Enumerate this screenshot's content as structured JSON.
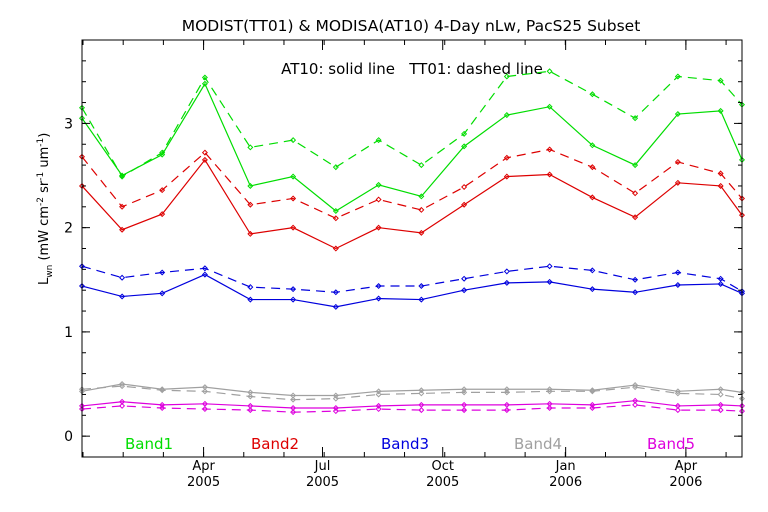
{
  "chart_data": {
    "type": "line",
    "title": "MODIST(TT01) & MODISA(AT10) 4-Day nLw, PacS25 Subset",
    "annotation": "AT10: solid line   TT01: dashed line",
    "ylabel": {
      "main": "L",
      "sub": "wn",
      "rest": " (mW cm",
      "sup1": "-2",
      "mid1": " sr",
      "sup2": "-1",
      "mid2": " um",
      "sup3": "-1",
      "end": ")"
    },
    "ylim": [
      -0.2,
      3.8
    ],
    "yticks": [
      0,
      1,
      2,
      3
    ],
    "xlim": [
      0,
      24.7
    ],
    "x": [
      0,
      1.5,
      3,
      4.6,
      6.3,
      7.9,
      9.5,
      11.1,
      12.7,
      14.3,
      15.9,
      17.5,
      19.1,
      20.7,
      22.3,
      23.9,
      24.7
    ],
    "xticks": [
      {
        "pos": 4.55,
        "month": "Apr",
        "year": "2005"
      },
      {
        "pos": 9.0,
        "month": "Jul",
        "year": "2005"
      },
      {
        "pos": 13.5,
        "month": "Oct",
        "year": "2005"
      },
      {
        "pos": 18.1,
        "month": "Jan",
        "year": "2006"
      },
      {
        "pos": 22.6,
        "month": "Apr",
        "year": "2006"
      }
    ],
    "series": [
      {
        "name": "Band1",
        "color": "#00dd00",
        "style": "solid",
        "values": [
          3.05,
          2.5,
          2.7,
          3.38,
          2.4,
          2.49,
          2.16,
          2.41,
          2.3,
          2.78,
          3.08,
          3.16,
          2.79,
          2.6,
          3.09,
          3.12,
          2.65
        ]
      },
      {
        "name": "Band1",
        "color": "#00dd00",
        "style": "dashed",
        "values": [
          3.15,
          2.49,
          2.72,
          3.44,
          2.77,
          2.84,
          2.58,
          2.84,
          2.6,
          2.9,
          3.45,
          3.5,
          3.28,
          3.05,
          3.45,
          3.41,
          3.18
        ]
      },
      {
        "name": "Band2",
        "color": "#dd0000",
        "style": "solid",
        "values": [
          2.4,
          1.98,
          2.13,
          2.65,
          1.94,
          2.0,
          1.8,
          2.0,
          1.95,
          2.22,
          2.49,
          2.51,
          2.29,
          2.1,
          2.43,
          2.4,
          2.12
        ]
      },
      {
        "name": "Band2",
        "color": "#dd0000",
        "style": "dashed",
        "values": [
          2.68,
          2.2,
          2.36,
          2.72,
          2.22,
          2.28,
          2.09,
          2.27,
          2.17,
          2.39,
          2.67,
          2.75,
          2.58,
          2.33,
          2.63,
          2.52,
          2.28
        ]
      },
      {
        "name": "Band3",
        "color": "#0000dd",
        "style": "solid",
        "values": [
          1.44,
          1.34,
          1.37,
          1.55,
          1.31,
          1.31,
          1.24,
          1.32,
          1.31,
          1.4,
          1.47,
          1.48,
          1.41,
          1.38,
          1.45,
          1.46,
          1.37
        ]
      },
      {
        "name": "Band3",
        "color": "#0000dd",
        "style": "dashed",
        "values": [
          1.63,
          1.52,
          1.57,
          1.61,
          1.43,
          1.41,
          1.38,
          1.44,
          1.44,
          1.51,
          1.58,
          1.63,
          1.59,
          1.5,
          1.57,
          1.51,
          1.39
        ]
      },
      {
        "name": "Band4",
        "color": "#a0a0a0",
        "style": "solid",
        "values": [
          0.43,
          0.5,
          0.45,
          0.47,
          0.42,
          0.39,
          0.39,
          0.43,
          0.44,
          0.45,
          0.45,
          0.45,
          0.44,
          0.49,
          0.43,
          0.45,
          0.42
        ]
      },
      {
        "name": "Band4",
        "color": "#a0a0a0",
        "style": "dashed",
        "values": [
          0.45,
          0.48,
          0.44,
          0.43,
          0.38,
          0.35,
          0.36,
          0.4,
          0.41,
          0.42,
          0.42,
          0.43,
          0.43,
          0.47,
          0.41,
          0.4,
          0.36
        ]
      },
      {
        "name": "Band5",
        "color": "#dd00dd",
        "style": "solid",
        "values": [
          0.29,
          0.33,
          0.3,
          0.31,
          0.29,
          0.27,
          0.27,
          0.29,
          0.3,
          0.3,
          0.3,
          0.31,
          0.3,
          0.34,
          0.29,
          0.3,
          0.29
        ]
      },
      {
        "name": "Band5",
        "color": "#dd00dd",
        "style": "dashed",
        "values": [
          0.26,
          0.29,
          0.27,
          0.26,
          0.25,
          0.23,
          0.24,
          0.26,
          0.25,
          0.25,
          0.25,
          0.27,
          0.27,
          0.3,
          0.25,
          0.25,
          0.24
        ]
      }
    ],
    "legend": [
      {
        "label": "Band1",
        "color": "#00dd00"
      },
      {
        "label": "Band2",
        "color": "#dd0000"
      },
      {
        "label": "Band3",
        "color": "#0000dd"
      },
      {
        "label": "Band4",
        "color": "#a0a0a0"
      },
      {
        "label": "Band5",
        "color": "#dd00dd"
      }
    ],
    "legend_placement": "bottom inside plot",
    "grid": false
  }
}
